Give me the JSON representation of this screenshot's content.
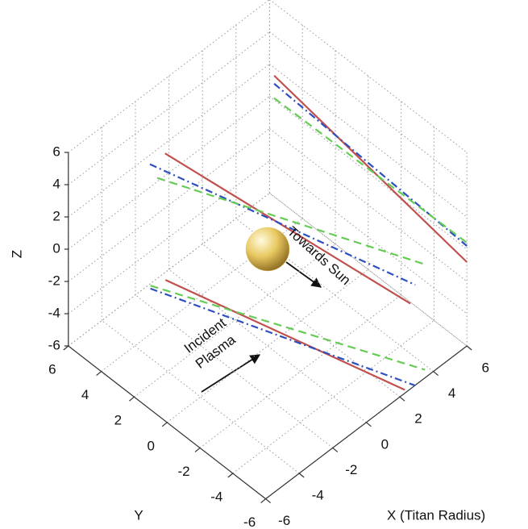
{
  "chart_data": {
    "type": "line3d",
    "x_label": "X (Titan Radius)",
    "y_label": "Y",
    "z_label": "Z",
    "xlim": [
      -6,
      6
    ],
    "ylim": [
      -6,
      6
    ],
    "zlim": [
      -6,
      6
    ],
    "xticks": [
      -6,
      -4,
      -2,
      0,
      2,
      4,
      6
    ],
    "yticks": [
      -6,
      -4,
      -2,
      0,
      2,
      4,
      6
    ],
    "zticks": [
      -6,
      -4,
      -2,
      0,
      2,
      4,
      6
    ],
    "grid": true,
    "sphere": {
      "center": [
        0,
        0,
        0
      ],
      "radius": 1,
      "color": "#e8c860"
    },
    "annotations": [
      {
        "lines": [
          "Towards Sun"
        ]
      },
      {
        "lines": [
          "Incident",
          "Plasma"
        ]
      }
    ],
    "series": [
      {
        "color": "#c0504d",
        "style": "solid",
        "x": [
          5,
          6
        ],
        "y": [
          4.7,
          -6
        ],
        "z": [
          3.1,
          -0.8
        ]
      },
      {
        "color": "#2e4fbf",
        "style": "dashdot",
        "x": [
          5,
          6
        ],
        "y": [
          4.7,
          -6
        ],
        "z": [
          2.6,
          0.2
        ]
      },
      {
        "color": "#66cc55",
        "style": "dashed",
        "x": [
          5,
          6
        ],
        "y": [
          4.7,
          -6
        ],
        "z": [
          1.7,
          0.4
        ]
      },
      {
        "color": "#c0504d",
        "style": "solid",
        "x": [
          -2,
          4
        ],
        "y": [
          4.2,
          -4.6
        ],
        "z": [
          4.2,
          -2.9
        ]
      },
      {
        "color": "#2e4fbf",
        "style": "dashdot",
        "x": [
          -3,
          4
        ],
        "y": [
          4.1,
          -4.9
        ],
        "z": [
          4.4,
          -1.5
        ]
      },
      {
        "color": "#66cc55",
        "style": "dashed",
        "x": [
          -3,
          5
        ],
        "y": [
          3.65,
          -4.6
        ],
        "z": [
          3.9,
          -1.3
        ]
      },
      {
        "color": "#c0504d",
        "style": "solid",
        "x": [
          -0.7,
          2.3
        ],
        "y": [
          5.5,
          -6
        ],
        "z": [
          -5.7,
          -5.8
        ]
      },
      {
        "color": "#2e4fbf",
        "style": "dashdot",
        "x": [
          -1.3,
          2.9
        ],
        "y": [
          5.8,
          -6
        ],
        "z": [
          -6,
          -6
        ]
      },
      {
        "color": "#66cc55",
        "style": "dashed",
        "x": [
          -1.5,
          3.5
        ],
        "y": [
          5.6,
          -6
        ],
        "z": [
          -5.5,
          -5.5
        ]
      }
    ]
  }
}
